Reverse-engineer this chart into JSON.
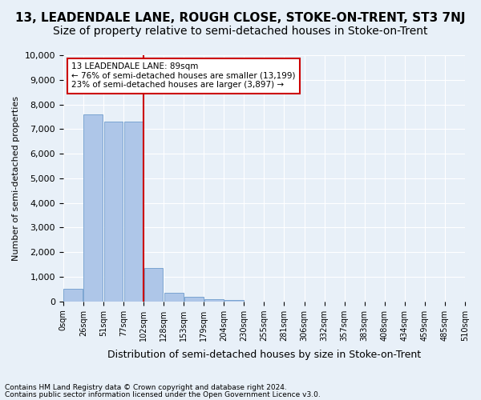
{
  "title": "13, LEADENDALE LANE, ROUGH CLOSE, STOKE-ON-TRENT, ST3 7NJ",
  "subtitle": "Size of property relative to semi-detached houses in Stoke-on-Trent",
  "xlabel": "Distribution of semi-detached houses by size in Stoke-on-Trent",
  "ylabel": "Number of semi-detached properties",
  "bin_labels": [
    "0sqm",
    "26sqm",
    "51sqm",
    "77sqm",
    "102sqm",
    "128sqm",
    "153sqm",
    "179sqm",
    "204sqm",
    "230sqm",
    "255sqm",
    "281sqm",
    "306sqm",
    "332sqm",
    "357sqm",
    "383sqm",
    "408sqm",
    "434sqm",
    "459sqm",
    "485sqm",
    "510sqm"
  ],
  "bar_values": [
    500,
    7600,
    7300,
    7300,
    1350,
    350,
    200,
    100,
    50,
    0,
    0,
    0,
    0,
    0,
    0,
    0,
    0,
    0,
    0,
    0
  ],
  "bar_color": "#aec6e8",
  "bar_edge_color": "#5a8fc4",
  "annotation_title": "13 LEADENDALE LANE: 89sqm",
  "annotation_line1": "← 76% of semi-detached houses are smaller (13,199)",
  "annotation_line2": "23% of semi-detached houses are larger (3,897) →",
  "annotation_box_color": "#ffffff",
  "annotation_box_edge": "#cc0000",
  "vline_color": "#cc0000",
  "vline_pos": 3.5,
  "ylim": [
    0,
    10000
  ],
  "yticks": [
    0,
    1000,
    2000,
    3000,
    4000,
    5000,
    6000,
    7000,
    8000,
    9000,
    10000
  ],
  "footer_line1": "Contains HM Land Registry data © Crown copyright and database right 2024.",
  "footer_line2": "Contains public sector information licensed under the Open Government Licence v3.0.",
  "background_color": "#e8f0f8",
  "grid_color": "#ffffff",
  "title_fontsize": 11,
  "subtitle_fontsize": 10
}
